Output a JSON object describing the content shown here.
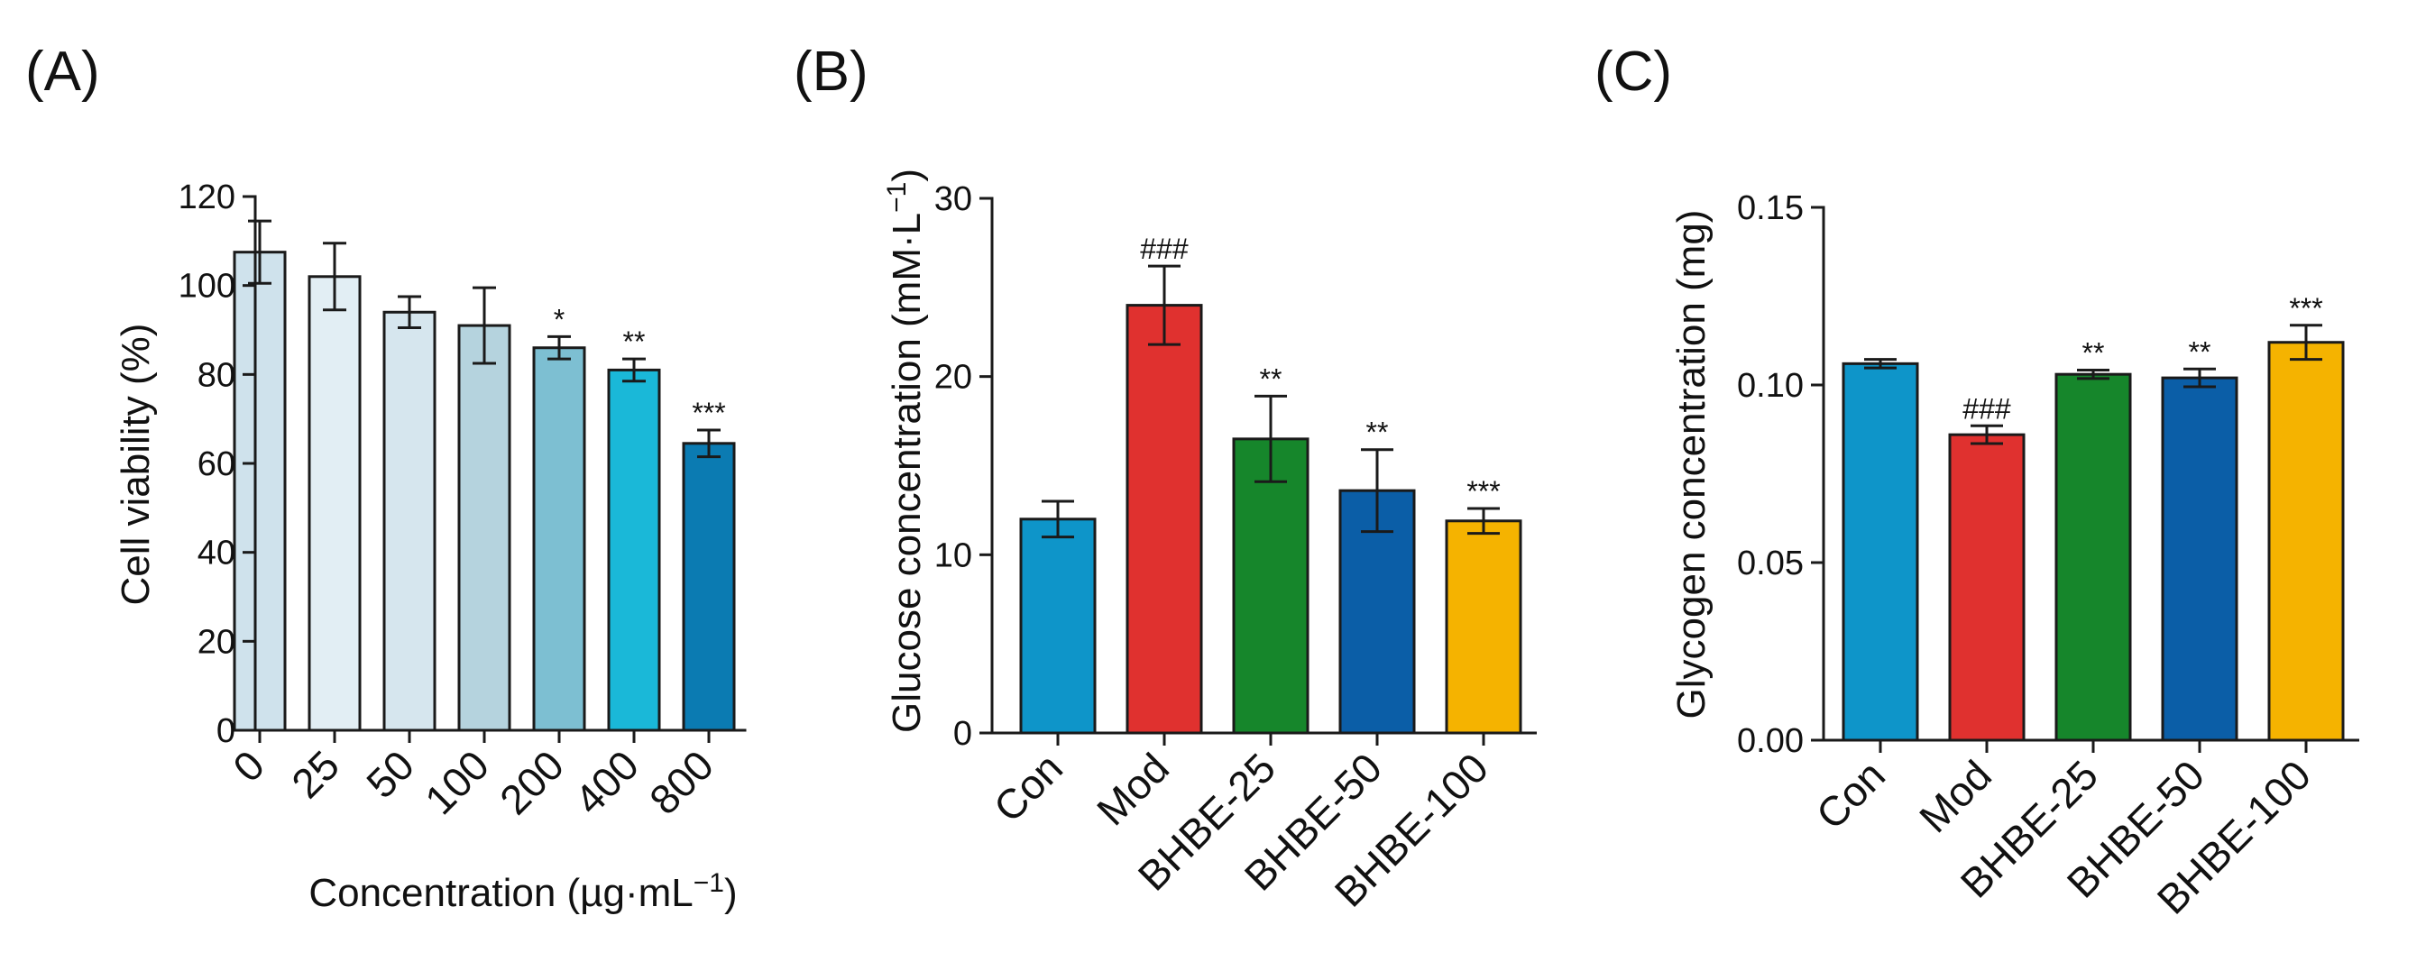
{
  "chart_data": [
    {
      "panel": "(A)",
      "type": "bar",
      "categories": [
        "0",
        "25",
        "50",
        "100",
        "200",
        "400",
        "800"
      ],
      "values": [
        107.5,
        102,
        94,
        91,
        86,
        81,
        64.5
      ],
      "errors": [
        7,
        7.5,
        3.5,
        8.5,
        2.5,
        2.5,
        3
      ],
      "significance": [
        "",
        "",
        "",
        "",
        "*",
        "**",
        "***"
      ],
      "colors": [
        "#cfe2ec",
        "#e2eef4",
        "#d6e6ee",
        "#b5d3de",
        "#7dbfd2",
        "#1ab8d8",
        "#0b7bb2"
      ],
      "title": "",
      "xlabel": "Concentration (µg·mL",
      "xlabel_superscript": "−1",
      "xlabel_end": ")",
      "ylabel": "Cell viability (%)",
      "ylim": [
        0,
        120
      ],
      "yticks": [
        0,
        20,
        40,
        60,
        80,
        100,
        120
      ],
      "ytick_labels": [
        "0",
        "20",
        "40",
        "60",
        "80",
        "100",
        "120"
      ],
      "grid": false
    },
    {
      "panel": "(B)",
      "type": "bar",
      "categories": [
        "Con",
        "Mod",
        "BHBE-25",
        "BHBE-50",
        "BHBE-100"
      ],
      "values": [
        12,
        24,
        16.5,
        13.6,
        11.9
      ],
      "errors": [
        1,
        2.2,
        2.4,
        2.3,
        0.7
      ],
      "significance": [
        "",
        "###",
        "**",
        "**",
        "***"
      ],
      "colors": [
        "#0e95c9",
        "#e0312f",
        "#16862b",
        "#0b5ea7",
        "#f5b300"
      ],
      "title": "",
      "xlabel": "",
      "ylabel": "Glucose concentration (mM·L",
      "ylabel_superscript": "−1",
      "ylabel_end": ")",
      "ylim": [
        0,
        30
      ],
      "yticks": [
        0,
        10,
        20,
        30
      ],
      "ytick_labels": [
        "0",
        "10",
        "20",
        "30"
      ],
      "grid": false
    },
    {
      "panel": "(C)",
      "type": "bar",
      "categories": [
        "Con",
        "Mod",
        "BHBE-25",
        "BHBE-50",
        "BHBE-100"
      ],
      "values": [
        0.106,
        0.086,
        0.103,
        0.102,
        0.112
      ],
      "errors": [
        0.0012,
        0.0025,
        0.0012,
        0.0025,
        0.0048
      ],
      "significance": [
        "",
        "###",
        "**",
        "**",
        "***"
      ],
      "colors": [
        "#0e95c9",
        "#e0312f",
        "#16862b",
        "#0b5ea7",
        "#f5b300"
      ],
      "title": "",
      "xlabel": "",
      "ylabel": "Glycogen concentration (mg)",
      "ylim": [
        0,
        0.15
      ],
      "yticks": [
        0,
        0.05,
        0.1,
        0.15
      ],
      "ytick_labels": [
        "0.00",
        "0.05",
        "0.10",
        "0.15"
      ],
      "grid": false
    }
  ]
}
